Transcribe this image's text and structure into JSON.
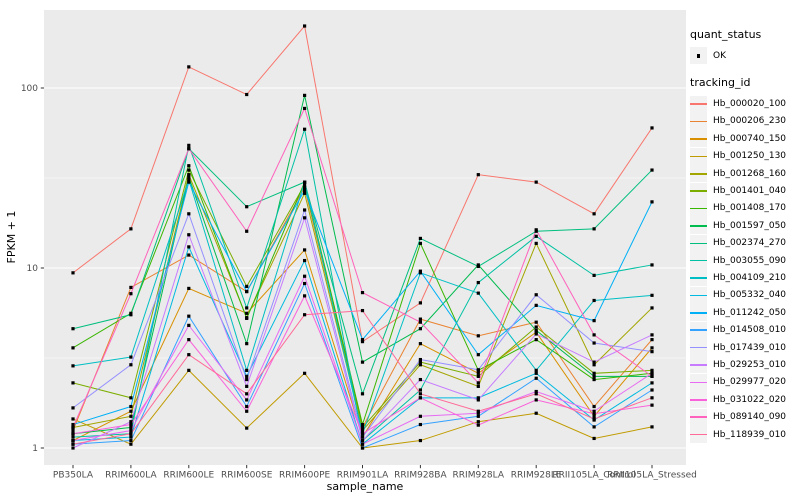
{
  "chart_data": {
    "type": "line",
    "title": "",
    "xlabel": "sample_name",
    "ylabel": "FPKM + 1",
    "y_scale": "log10",
    "ylim": [
      1,
      280
    ],
    "y_ticks": [
      1,
      10,
      100
    ],
    "y_minor_ticks": [
      3.1623,
      31.623
    ],
    "grid": "on",
    "legend_position": "right",
    "point_marker": {
      "shape": "square",
      "color": "#000000"
    },
    "categories": [
      "PB350LA",
      "RRIM600LA",
      "RRIM600LE",
      "RRIM600SE",
      "RRIM600PE",
      "RRIM901LA",
      "RRIM928BA",
      "RRIM928LA",
      "RRIM928LE",
      "RRII105LA_Control",
      "RRII105LA_Stressed"
    ],
    "series": [
      {
        "name": "Hb_000020_100",
        "color": "#F8766D",
        "values": [
          9.4,
          16.5,
          131,
          92,
          221,
          3.9,
          6.4,
          33,
          30,
          20,
          60
        ]
      },
      {
        "name": "Hb_000206_230",
        "color": "#EA8331",
        "values": [
          1.25,
          7.8,
          11.8,
          7.4,
          28,
          1.3,
          5.2,
          4.2,
          5.0,
          1.7,
          4.0
        ]
      },
      {
        "name": "Hb_000740_150",
        "color": "#D89000",
        "values": [
          1.1,
          1.6,
          7.7,
          5.6,
          12.6,
          1.15,
          3.8,
          2.6,
          4.4,
          1.5,
          3.6
        ]
      },
      {
        "name": "Hb_001250_130",
        "color": "#C09B00",
        "values": [
          1.45,
          1.05,
          2.7,
          1.29,
          2.6,
          1.0,
          1.1,
          1.4,
          1.56,
          1.13,
          1.31
        ]
      },
      {
        "name": "Hb_001268_160",
        "color": "#A3A500",
        "values": [
          1.3,
          1.5,
          33,
          5.3,
          26,
          1.25,
          2.9,
          2.2,
          13.7,
          2.9,
          6.0
        ]
      },
      {
        "name": "Hb_001401_040",
        "color": "#7CAE00",
        "values": [
          2.3,
          1.9,
          35,
          7.9,
          29,
          1.3,
          3.0,
          2.5,
          4.7,
          2.6,
          2.7
        ]
      },
      {
        "name": "Hb_001408_170",
        "color": "#39B600",
        "values": [
          3.6,
          5.6,
          37,
          5.25,
          30,
          1.35,
          13.7,
          2.7,
          4.0,
          2.4,
          2.6
        ]
      },
      {
        "name": "Hb_001597_050",
        "color": "#00BB4E",
        "values": [
          1.2,
          1.3,
          32,
          3.8,
          91,
          3.0,
          4.6,
          10.4,
          4.5,
          2.5,
          2.5
        ]
      },
      {
        "name": "Hb_002374_270",
        "color": "#00BF7D",
        "values": [
          4.6,
          5.5,
          46,
          21.9,
          30,
          2.0,
          14.6,
          10.2,
          16,
          16.5,
          35
        ]
      },
      {
        "name": "Hb_003055_090",
        "color": "#00C1A3",
        "values": [
          1.15,
          1.2,
          48,
          6.0,
          59,
          1.1,
          2.1,
          8.3,
          15,
          9.1,
          10.4
        ]
      },
      {
        "name": "Hb_004109_210",
        "color": "#00BFC4",
        "values": [
          2.86,
          3.2,
          31,
          2.7,
          30,
          1.2,
          9.4,
          7.25,
          2.7,
          6.6,
          7.05
        ]
      },
      {
        "name": "Hb_005332_040",
        "color": "#00BAE0",
        "values": [
          1.1,
          1.15,
          13.1,
          2.5,
          11,
          1.05,
          1.9,
          1.9,
          2.6,
          1.43,
          2.3
        ]
      },
      {
        "name": "Hb_011242_050",
        "color": "#00B0F6",
        "values": [
          1.35,
          1.7,
          30,
          7.4,
          27,
          4.0,
          9.6,
          3.3,
          6.2,
          5.1,
          23.3
        ]
      },
      {
        "name": "Hb_014508_010",
        "color": "#35A2FF",
        "values": [
          1.05,
          1.1,
          5.4,
          1.7,
          8.2,
          1.0,
          1.35,
          1.5,
          2.44,
          1.31,
          2.1
        ]
      },
      {
        "name": "Hb_017439_010",
        "color": "#9590FF",
        "values": [
          1.67,
          2.9,
          20,
          2.4,
          21,
          1.15,
          3.1,
          2.72,
          7.1,
          3.83,
          3.43
        ]
      },
      {
        "name": "Hb_029253_010",
        "color": "#C77CFF",
        "values": [
          1.0,
          1.4,
          15.3,
          2.2,
          19,
          1.1,
          2.4,
          1.85,
          4.3,
          3.0,
          4.25
        ]
      },
      {
        "name": "Hb_029977_020",
        "color": "#E76BF3",
        "values": [
          1.1,
          1.25,
          4.8,
          1.85,
          9.0,
          1.05,
          1.5,
          1.56,
          2.06,
          1.6,
          2.6
        ]
      },
      {
        "name": "Hb_031022_020",
        "color": "#FA62DB",
        "values": [
          1.2,
          1.35,
          4.0,
          1.6,
          7.0,
          1.2,
          1.9,
          1.34,
          1.85,
          1.55,
          1.73
        ]
      },
      {
        "name": "Hb_089140_090",
        "color": "#FF62BC",
        "values": [
          1.3,
          7.2,
          46,
          16,
          77,
          7.3,
          5.0,
          2.3,
          16.3,
          4.25,
          2.5
        ]
      },
      {
        "name": "Hb_118939_010",
        "color": "#FF6A98",
        "values": [
          1.05,
          1.2,
          3.3,
          2.0,
          5.5,
          5.8,
          2.0,
          1.6,
          2.0,
          1.45,
          1.9
        ]
      }
    ]
  },
  "legend": {
    "quant_status_title": "quant_status",
    "quant_status_items": [
      {
        "label": "OK"
      }
    ],
    "tracking_title": "tracking_id"
  },
  "style": {
    "panel_bg": "#EBEBEB",
    "grid_color": "#FFFFFF",
    "tick_color": "#333333",
    "tick_label_color": "#4D4D4D",
    "legend_key_bg": "#F2F2F2"
  }
}
